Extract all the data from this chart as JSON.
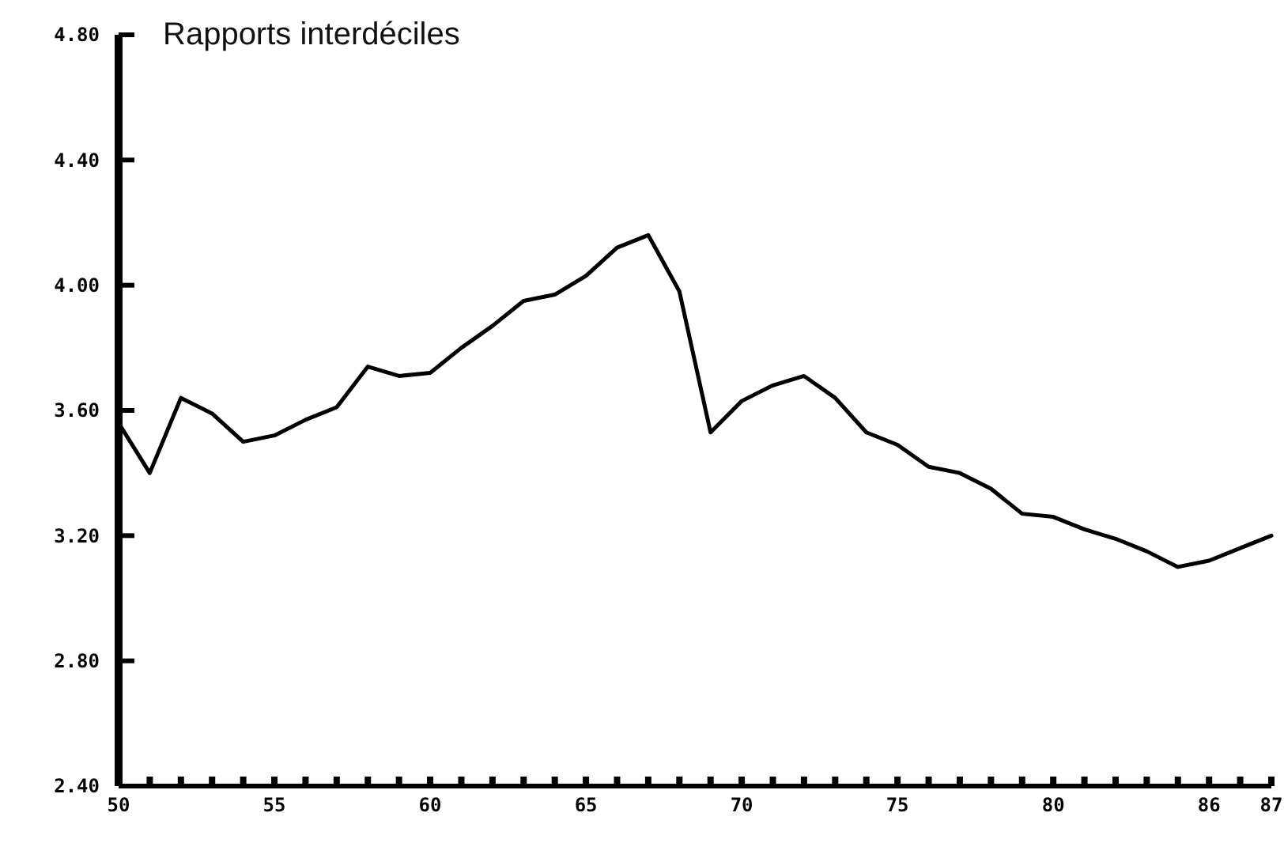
{
  "chart_data": {
    "type": "line",
    "title": "Rapports interdéciles",
    "categories": [
      "50",
      null,
      null,
      null,
      null,
      "55",
      null,
      null,
      null,
      null,
      "60",
      null,
      null,
      null,
      null,
      "65",
      null,
      null,
      null,
      null,
      "70",
      null,
      null,
      null,
      null,
      "75",
      null,
      null,
      null,
      null,
      "80",
      null,
      null,
      null,
      null,
      "86",
      null,
      "87"
    ],
    "values": [
      3.56,
      3.4,
      3.64,
      3.59,
      3.5,
      3.52,
      3.57,
      3.61,
      3.74,
      3.71,
      3.72,
      3.8,
      3.87,
      3.95,
      3.97,
      4.03,
      4.12,
      4.16,
      3.98,
      3.53,
      3.63,
      3.68,
      3.71,
      3.64,
      3.53,
      3.49,
      3.42,
      3.4,
      3.35,
      3.27,
      3.26,
      3.22,
      3.19,
      3.15,
      3.1,
      3.12,
      3.16,
      3.2
    ],
    "color": "#000000",
    "ylim": [
      2.4,
      4.8
    ],
    "yticks": [
      {
        "value": 2.4,
        "label": "2.40"
      },
      {
        "value": 2.8,
        "label": "2.80"
      },
      {
        "value": 3.2,
        "label": "3.20"
      },
      {
        "value": 3.6,
        "label": "3.60"
      },
      {
        "value": 4.0,
        "label": "4.00"
      },
      {
        "value": 4.4,
        "label": "4.40"
      },
      {
        "value": 4.8,
        "label": "4.80"
      }
    ],
    "grid": false,
    "marker": "none",
    "line_style": "solid"
  }
}
